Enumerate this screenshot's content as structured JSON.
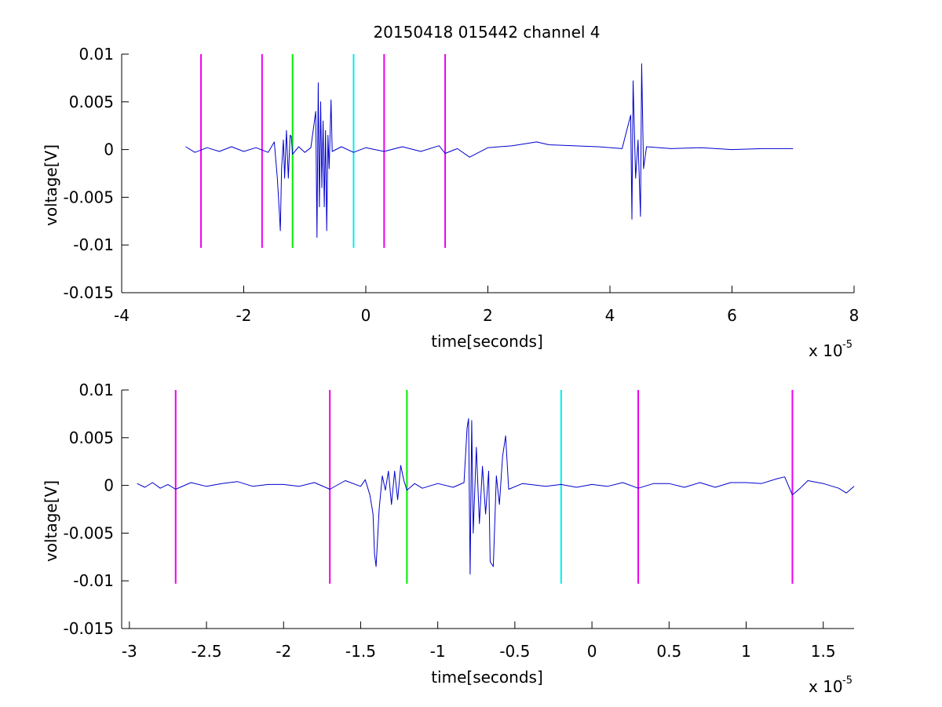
{
  "figure": {
    "title": "20150418 015442 channel 4",
    "axis_colors": {
      "trace": "#0000cc",
      "magenta": "#ee00ee",
      "green": "#00ee00",
      "cyan": "#00eeee",
      "axes": "#000000"
    }
  },
  "chart_data": [
    {
      "type": "line",
      "title": "20150418 015442 channel 4",
      "xlabel": "time[seconds]",
      "ylabel": "voltage[V]",
      "x_multiplier": "x 10",
      "x_exponent": "-5",
      "xlim": [
        -4,
        8
      ],
      "ylim": [
        -0.015,
        0.01
      ],
      "xticks": [
        -4,
        -2,
        0,
        2,
        4,
        6,
        8
      ],
      "xtick_labels": [
        "-4",
        "-2",
        "0",
        "2",
        "4",
        "6",
        "8"
      ],
      "yticks": [
        0.01,
        0.005,
        0,
        -0.005,
        -0.01,
        -0.015
      ],
      "ytick_labels": [
        "0.01",
        "0.005",
        "0",
        "-0.005",
        "-0.01",
        "-0.015"
      ],
      "grid": false,
      "vlines": [
        {
          "x": -2.7,
          "color": "#ee00ee"
        },
        {
          "x": -1.7,
          "color": "#ee00ee"
        },
        {
          "x": -1.2,
          "color": "#00ee00"
        },
        {
          "x": -0.2,
          "color": "#00eeee"
        },
        {
          "x": 0.3,
          "color": "#ee00ee"
        },
        {
          "x": 1.3,
          "color": "#ee00ee"
        }
      ],
      "vline_range": [
        -0.0103,
        0.01
      ],
      "series": [
        {
          "color": "#0000cc",
          "points": [
            [
              -2.95,
              0.0003
            ],
            [
              -2.8,
              -0.0003
            ],
            [
              -2.6,
              0.0002
            ],
            [
              -2.4,
              -0.0002
            ],
            [
              -2.2,
              0.0003
            ],
            [
              -2.0,
              -0.0002
            ],
            [
              -1.8,
              0.0002
            ],
            [
              -1.6,
              -0.0003
            ],
            [
              -1.5,
              0.0008
            ],
            [
              -1.45,
              -0.003
            ],
            [
              -1.42,
              -0.0062
            ],
            [
              -1.4,
              -0.0085
            ],
            [
              -1.38,
              -0.002
            ],
            [
              -1.35,
              0.001
            ],
            [
              -1.33,
              -0.003
            ],
            [
              -1.3,
              0.002
            ],
            [
              -1.27,
              -0.003
            ],
            [
              -1.24,
              0.0015
            ],
            [
              -1.22,
              0.0014
            ],
            [
              -1.2,
              -0.0005
            ],
            [
              -1.1,
              0.0003
            ],
            [
              -1.0,
              -0.0003
            ],
            [
              -0.9,
              0.0002
            ],
            [
              -0.82,
              0.004
            ],
            [
              -0.8,
              -0.0092
            ],
            [
              -0.78,
              0.007
            ],
            [
              -0.76,
              -0.006
            ],
            [
              -0.74,
              0.005
            ],
            [
              -0.72,
              -0.004
            ],
            [
              -0.7,
              0.003
            ],
            [
              -0.68,
              -0.006
            ],
            [
              -0.66,
              0.002
            ],
            [
              -0.64,
              -0.0085
            ],
            [
              -0.62,
              0.0015
            ],
            [
              -0.6,
              -0.002
            ],
            [
              -0.57,
              0.0052
            ],
            [
              -0.55,
              -0.0002
            ],
            [
              -0.4,
              0.0003
            ],
            [
              -0.2,
              -0.0003
            ],
            [
              0.0,
              0.0002
            ],
            [
              0.3,
              -0.0002
            ],
            [
              0.6,
              0.0003
            ],
            [
              0.9,
              -0.0002
            ],
            [
              1.2,
              0.0004
            ],
            [
              1.3,
              -0.0004
            ],
            [
              1.5,
              0.0001
            ],
            [
              1.7,
              -0.0008
            ],
            [
              2.0,
              0.0002
            ],
            [
              2.4,
              0.0004
            ],
            [
              2.8,
              0.0008
            ],
            [
              3.0,
              0.0005
            ],
            [
              3.4,
              0.0004
            ],
            [
              3.8,
              0.0003
            ],
            [
              4.2,
              0.0001
            ],
            [
              4.34,
              0.0036
            ],
            [
              4.36,
              -0.0073
            ],
            [
              4.38,
              0.0072
            ],
            [
              4.42,
              -0.003
            ],
            [
              4.46,
              0.001
            ],
            [
              4.5,
              -0.007
            ],
            [
              4.52,
              0.009
            ],
            [
              4.55,
              -0.002
            ],
            [
              4.6,
              0.0003
            ],
            [
              5.0,
              0.0001
            ],
            [
              5.5,
              0.0002
            ],
            [
              6.0,
              0.0
            ],
            [
              6.5,
              0.0001
            ],
            [
              7.0,
              0.0001
            ]
          ]
        }
      ]
    },
    {
      "type": "line",
      "title": "",
      "xlabel": "time[seconds]",
      "ylabel": "voltage[V]",
      "x_multiplier": "x 10",
      "x_exponent": "-5",
      "xlim": [
        -3.05,
        1.7
      ],
      "ylim": [
        -0.015,
        0.01
      ],
      "xticks": [
        -3,
        -2.5,
        -2,
        -1.5,
        -1,
        -0.5,
        0,
        0.5,
        1,
        1.5
      ],
      "xtick_labels": [
        "-3",
        "-2.5",
        "-2",
        "-1.5",
        "-1",
        "-0.5",
        "0",
        "0.5",
        "1",
        "1.5"
      ],
      "yticks": [
        0.01,
        0.005,
        0,
        -0.005,
        -0.01,
        -0.015
      ],
      "ytick_labels": [
        "0.01",
        "0.005",
        "0",
        "-0.005",
        "-0.01",
        "-0.015"
      ],
      "grid": false,
      "vlines": [
        {
          "x": -2.7,
          "color": "#ee00ee"
        },
        {
          "x": -1.7,
          "color": "#ee00ee"
        },
        {
          "x": -1.2,
          "color": "#00ee00"
        },
        {
          "x": -0.2,
          "color": "#00eeee"
        },
        {
          "x": 0.3,
          "color": "#ee00ee"
        },
        {
          "x": 1.3,
          "color": "#ee00ee"
        }
      ],
      "vline_range": [
        -0.0103,
        0.01
      ],
      "series": [
        {
          "color": "#0000cc",
          "points": [
            [
              -2.95,
              0.0002
            ],
            [
              -2.9,
              -0.0002
            ],
            [
              -2.85,
              0.0003
            ],
            [
              -2.8,
              -0.0003
            ],
            [
              -2.75,
              0.0001
            ],
            [
              -2.7,
              -0.0004
            ],
            [
              -2.6,
              0.0003
            ],
            [
              -2.5,
              -0.0001
            ],
            [
              -2.4,
              0.0002
            ],
            [
              -2.3,
              0.0004
            ],
            [
              -2.2,
              -0.0001
            ],
            [
              -2.1,
              0.0001
            ],
            [
              -2.0,
              0.0001
            ],
            [
              -1.9,
              -0.0001
            ],
            [
              -1.8,
              0.0003
            ],
            [
              -1.7,
              -0.0004
            ],
            [
              -1.6,
              0.0005
            ],
            [
              -1.5,
              -0.0001
            ],
            [
              -1.47,
              0.0006
            ],
            [
              -1.44,
              -0.001
            ],
            [
              -1.42,
              -0.003
            ],
            [
              -1.41,
              -0.0072
            ],
            [
              -1.4,
              -0.0085
            ],
            [
              -1.38,
              -0.0025
            ],
            [
              -1.36,
              0.001
            ],
            [
              -1.34,
              -0.0005
            ],
            [
              -1.32,
              0.0015
            ],
            [
              -1.3,
              -0.002
            ],
            [
              -1.28,
              0.0015
            ],
            [
              -1.26,
              -0.0015
            ],
            [
              -1.24,
              0.0021
            ],
            [
              -1.22,
              0.0005
            ],
            [
              -1.2,
              -0.0005
            ],
            [
              -1.15,
              0.0002
            ],
            [
              -1.1,
              -0.0003
            ],
            [
              -1.0,
              0.0002
            ],
            [
              -0.9,
              -0.0002
            ],
            [
              -0.83,
              0.0003
            ],
            [
              -0.81,
              0.006
            ],
            [
              -0.8,
              0.007
            ],
            [
              -0.79,
              -0.0093
            ],
            [
              -0.78,
              0.0068
            ],
            [
              -0.77,
              -0.005
            ],
            [
              -0.75,
              0.004
            ],
            [
              -0.73,
              -0.004
            ],
            [
              -0.71,
              0.002
            ],
            [
              -0.69,
              -0.003
            ],
            [
              -0.67,
              0.0015
            ],
            [
              -0.66,
              -0.008
            ],
            [
              -0.64,
              -0.0085
            ],
            [
              -0.62,
              0.001
            ],
            [
              -0.6,
              -0.002
            ],
            [
              -0.58,
              0.003
            ],
            [
              -0.56,
              0.0052
            ],
            [
              -0.54,
              -0.0004
            ],
            [
              -0.45,
              0.0002
            ],
            [
              -0.3,
              -0.0001
            ],
            [
              -0.2,
              0.0001
            ],
            [
              -0.1,
              -0.0002
            ],
            [
              0.0,
              0.0001
            ],
            [
              0.1,
              -0.0001
            ],
            [
              0.2,
              0.0003
            ],
            [
              0.3,
              -0.0003
            ],
            [
              0.4,
              0.0002
            ],
            [
              0.5,
              0.0002
            ],
            [
              0.6,
              -0.0002
            ],
            [
              0.7,
              0.0003
            ],
            [
              0.8,
              -0.0002
            ],
            [
              0.9,
              0.0003
            ],
            [
              1.0,
              0.0003
            ],
            [
              1.1,
              0.0002
            ],
            [
              1.2,
              0.0007
            ],
            [
              1.25,
              0.0009
            ],
            [
              1.3,
              -0.001
            ],
            [
              1.35,
              -0.0003
            ],
            [
              1.4,
              0.0005
            ],
            [
              1.5,
              0.0002
            ],
            [
              1.6,
              -0.0003
            ],
            [
              1.65,
              -0.0008
            ],
            [
              1.7,
              -0.0001
            ]
          ]
        }
      ]
    }
  ]
}
